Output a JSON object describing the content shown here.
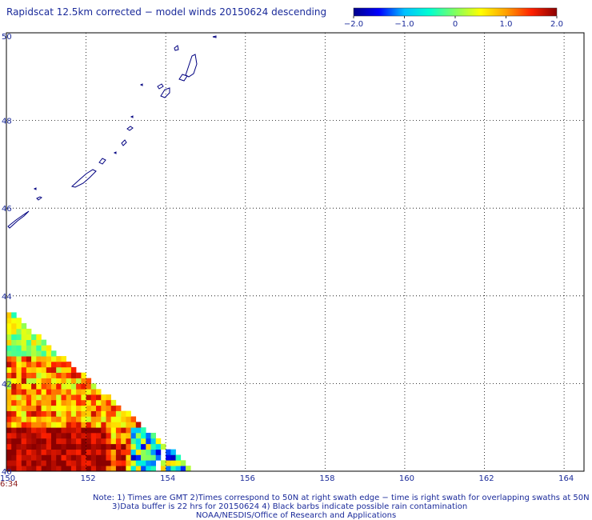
{
  "title": "Rapidscat 12.5km corrected − model winds 20150624 descending",
  "colorbar": {
    "min": -2.0,
    "max": 2.0,
    "tick_labels": [
      "−2.0",
      "−1.0",
      "0",
      "1.0",
      "2.0"
    ],
    "tick_values": [
      -2.0,
      -1.0,
      0,
      1.0,
      2.0
    ],
    "colors": [
      "#00008b",
      "#0000ff",
      "#00c0ff",
      "#00ffd0",
      "#80ff60",
      "#ffff00",
      "#ffa000",
      "#ff2000",
      "#8b0000"
    ]
  },
  "map": {
    "lon_range": [
      150,
      164.5
    ],
    "lat_range": [
      40,
      50
    ],
    "lon_ticks": [
      150,
      152,
      154,
      156,
      158,
      160,
      162,
      164
    ],
    "lon_tick_labels": [
      "150",
      "152",
      "154",
      "156",
      "158",
      "160",
      "162",
      "164"
    ],
    "lat_ticks": [
      40,
      42,
      44,
      46,
      48,
      50
    ],
    "lat_tick_labels": [
      "40",
      "42",
      "44",
      "46",
      "48",
      "50"
    ],
    "grid": true,
    "coastline_color": "#000080"
  },
  "timestamp": "6:34",
  "notes": [
    "Note: 1) Times are GMT 2)Times correspond to 50N at right swath edge − time is right swath for overlapping swaths at 50N",
    "3)Data buffer is 22 hrs for 20150624 4) Black barbs indicate possible rain contamination",
    "NOAA/NESDIS/Office of Research and Applications"
  ]
}
